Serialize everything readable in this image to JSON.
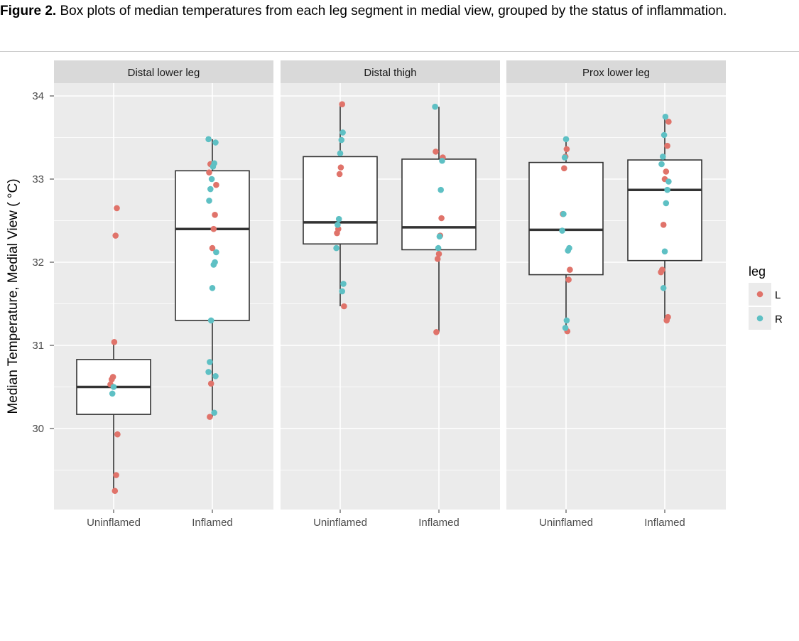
{
  "caption": {
    "label": "Figure 2.",
    "text": " Box plots of median temperatures from each leg segment in medial view, grouped by the status of inflammation."
  },
  "colors": {
    "L": "#E0736A",
    "R": "#5EC0C4",
    "panel": "#EBEBEB",
    "strip": "#D9D9D9"
  },
  "chart_data": {
    "type": "box",
    "ylabel": "Median Temperature, Medial View ( °C)",
    "ylim": [
      29.1,
      34.15
    ],
    "yticks": [
      30,
      31,
      32,
      33,
      34
    ],
    "categories": [
      "Uninflamed",
      "Inflamed"
    ],
    "legend": {
      "title": "leg",
      "entries": [
        "L",
        "R"
      ],
      "position": "right"
    },
    "grid": true,
    "panels": [
      {
        "title": "Distal lower leg",
        "groups": [
          {
            "category": "Uninflamed",
            "box": {
              "min": 29.25,
              "q1": 30.17,
              "median": 30.5,
              "q3": 30.83,
              "max": 31.04
            },
            "L": [
              32.65,
              32.32,
              31.04,
              30.62,
              30.59,
              30.53,
              29.93,
              29.44,
              29.25
            ],
            "R": [
              30.5,
              30.42
            ]
          },
          {
            "category": "Inflamed",
            "box": {
              "min": 30.14,
              "q1": 31.3,
              "median": 32.4,
              "q3": 33.1,
              "max": 33.48
            },
            "L": [
              33.18,
              33.08,
              32.93,
              32.57,
              32.4,
              32.17,
              30.54,
              30.14
            ],
            "R": [
              33.48,
              33.44,
              33.19,
              33.15,
              33.0,
              32.88,
              32.74,
              32.12,
              32.0,
              31.97,
              31.69,
              31.3,
              30.8,
              30.68,
              30.63,
              30.19
            ]
          }
        ]
      },
      {
        "title": "Distal thigh",
        "groups": [
          {
            "category": "Uninflamed",
            "box": {
              "min": 31.47,
              "q1": 32.22,
              "median": 32.48,
              "q3": 33.27,
              "max": 33.9
            },
            "L": [
              33.9,
              33.14,
              33.06,
              32.4,
              32.35,
              31.47
            ],
            "R": [
              33.56,
              33.47,
              33.31,
              32.52,
              32.45,
              32.17,
              31.74,
              31.65
            ]
          },
          {
            "category": "Inflamed",
            "box": {
              "min": 31.16,
              "q1": 32.15,
              "median": 32.42,
              "q3": 33.24,
              "max": 33.87
            },
            "L": [
              33.33,
              33.26,
              32.53,
              32.32,
              32.1,
              32.04,
              31.16
            ],
            "R": [
              33.87,
              33.22,
              32.87,
              32.31,
              32.17
            ]
          }
        ]
      },
      {
        "title": "Prox lower leg",
        "groups": [
          {
            "category": "Uninflamed",
            "box": {
              "min": 31.17,
              "q1": 31.85,
              "median": 32.39,
              "q3": 33.2,
              "max": 33.48
            },
            "L": [
              33.36,
              33.27,
              33.13,
              32.58,
              31.91,
              31.79,
              31.17
            ],
            "R": [
              33.48,
              33.26,
              32.58,
              32.38,
              32.17,
              32.14,
              31.3,
              31.21
            ]
          },
          {
            "category": "Inflamed",
            "box": {
              "min": 31.3,
              "q1": 32.02,
              "median": 32.87,
              "q3": 33.23,
              "max": 33.75
            },
            "L": [
              33.69,
              33.4,
              33.09,
              33.0,
              32.45,
              31.91,
              31.88,
              31.34,
              31.3
            ],
            "R": [
              33.75,
              33.53,
              33.27,
              33.18,
              32.97,
              32.87,
              32.71,
              32.13,
              31.69
            ]
          }
        ]
      }
    ]
  }
}
